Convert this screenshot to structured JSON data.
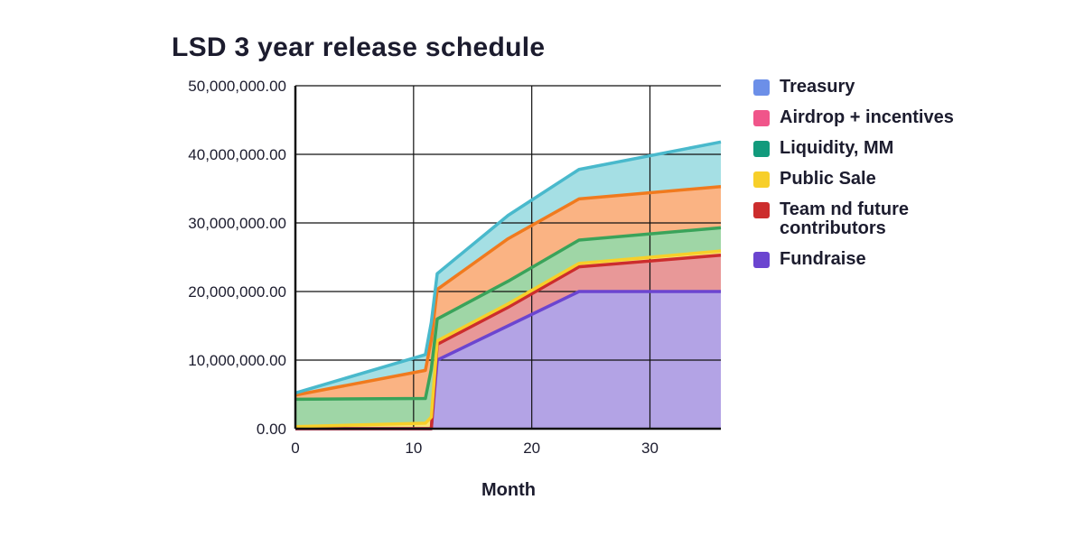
{
  "chart_data": {
    "type": "area",
    "stacked": true,
    "title": "LSD 3 year release schedule",
    "xlabel": "Month",
    "ylabel": "",
    "xlim": [
      0,
      36
    ],
    "ylim": [
      0,
      50000000
    ],
    "x_ticks": [
      0,
      10,
      20,
      30
    ],
    "y_ticks": [
      0,
      10000000,
      20000000,
      30000000,
      40000000,
      50000000
    ],
    "y_tick_labels": [
      "0.00",
      "10,000,000.00",
      "20,000,000.00",
      "30,000,000.00",
      "40,000,000.00",
      "50,000,000.00"
    ],
    "grid": true,
    "legend_position": "right",
    "x": [
      0,
      11,
      11.5,
      12,
      18,
      24,
      36
    ],
    "series": [
      {
        "name": "Fundraise",
        "color": "#6b45d0",
        "fill": "#b3a3e5",
        "values": [
          0,
          0,
          0,
          10000000,
          15000000,
          20000000,
          20000000
        ]
      },
      {
        "name": "Team nd future contributors",
        "color": "#cc2d2d",
        "fill": "#e89898",
        "values": [
          0,
          0,
          0,
          2300000,
          2700000,
          3600000,
          5300000
        ]
      },
      {
        "name": "Public Sale",
        "color": "#f7cf2a",
        "fill": "#f9e27a",
        "values": [
          300000,
          800000,
          1700000,
          500000,
          500000,
          500000,
          600000
        ]
      },
      {
        "name": "Liquidity, MM",
        "color": "#3aa35a",
        "fill": "#9fd6a6",
        "values": [
          4000000,
          3600000,
          7000000,
          3200000,
          3300000,
          3400000,
          3400000
        ]
      },
      {
        "name": "Airdrop + incentives",
        "color": "#f07a1e",
        "fill": "#fab383",
        "values": [
          600000,
          4100000,
          4300000,
          4300000,
          6200000,
          6000000,
          6000000
        ]
      },
      {
        "name": "Treasury",
        "color": "#49b9cc",
        "fill": "#a5dfe4",
        "values": [
          300000,
          2300000,
          2500000,
          2300000,
          3400000,
          4300000,
          6500000
        ]
      }
    ],
    "legend": [
      {
        "name": "Treasury",
        "color": "#6c8fe8"
      },
      {
        "name": "Airdrop + incentives",
        "color": "#f0558a"
      },
      {
        "name": "Liquidity, MM",
        "color": "#129a7c"
      },
      {
        "name": "Public Sale",
        "color": "#f7cf2a"
      },
      {
        "name": "Team nd future contributors",
        "color": "#cc2d2d"
      },
      {
        "name": "Fundraise",
        "color": "#6b45d0"
      }
    ]
  }
}
